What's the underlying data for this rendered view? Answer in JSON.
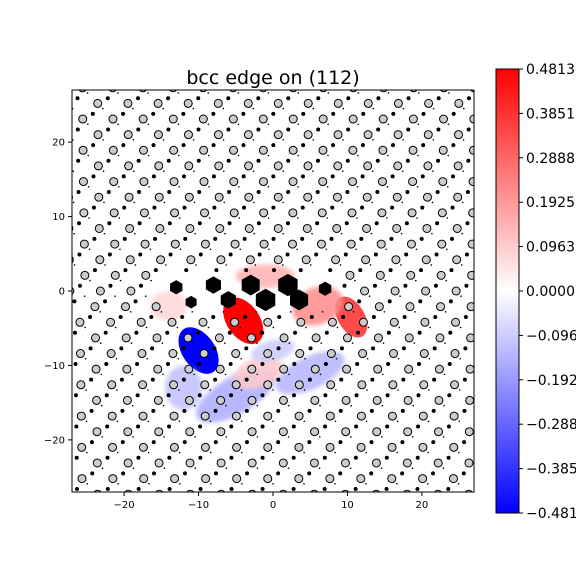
{
  "chart_data": {
    "type": "heatmap",
    "title": "bcc edge on (112)",
    "xlabel": "",
    "ylabel": "",
    "xlim": [
      -27,
      27
    ],
    "ylim": [
      -27,
      27
    ],
    "x_ticks": [
      -20,
      -10,
      0,
      10,
      20
    ],
    "y_ticks": [
      -20,
      -10,
      0,
      10,
      20
    ],
    "grid": false,
    "colormap": "bwr",
    "colorbar": {
      "vmin": -0.4813,
      "vmax": 0.4813,
      "tick_values": [
        0.4813,
        0.3851,
        0.2888,
        0.1925,
        0.0963,
        0.0,
        -0.0963,
        -0.1925,
        -0.2888,
        -0.3851,
        -0.4813
      ],
      "tick_labels": [
        "0.4813",
        "0.3851",
        "0.2888",
        "0.1925",
        "0.0963",
        "0.0000",
        "-0.096",
        "-0.192",
        "-0.288",
        "-0.385",
        "-0.481"
      ],
      "colors": {
        "max": "#ff0000",
        "mid": "#ffffff",
        "min": "#0000ff"
      }
    },
    "atom_lattice": {
      "a1": [
        4.1,
        0
      ],
      "a2": [
        2.05,
        2.1
      ],
      "layer_offset": [
        1.37,
        0.7
      ],
      "open_marker_color": "#cccccc",
      "filled_marker_color": "#000000"
    },
    "core_atoms": [
      {
        "x": -13,
        "y": 0.5,
        "size": 1.6
      },
      {
        "x": -11,
        "y": -1.5,
        "size": 1.4
      },
      {
        "x": -8,
        "y": 0.8,
        "size": 2.0
      },
      {
        "x": -6,
        "y": -1.2,
        "size": 2.0
      },
      {
        "x": -3,
        "y": 0.8,
        "size": 2.4
      },
      {
        "x": -1,
        "y": -1.2,
        "size": 2.6
      },
      {
        "x": 2,
        "y": 0.8,
        "size": 2.6
      },
      {
        "x": 3.5,
        "y": -1.2,
        "size": 2.4
      },
      {
        "x": 7,
        "y": 0.3,
        "size": 1.6
      }
    ],
    "shear_strain_patches": [
      {
        "x": -10,
        "y": -8,
        "sx": 2.2,
        "sy": 3.5,
        "angle": 35,
        "value": -0.4813
      },
      {
        "x": -4,
        "y": -4,
        "sx": 2.2,
        "sy": 3.5,
        "angle": 35,
        "value": 0.4813
      },
      {
        "x": 10.5,
        "y": -3.5,
        "sx": 1.8,
        "sy": 3.0,
        "angle": 30,
        "value": 0.34
      },
      {
        "x": 6,
        "y": -2,
        "sx": 3.5,
        "sy": 2.5,
        "angle": 20,
        "value": 0.22
      },
      {
        "x": -1,
        "y": 2,
        "sx": 4.0,
        "sy": 1.6,
        "angle": 0,
        "value": 0.15
      },
      {
        "x": -5,
        "y": -14,
        "sx": 6.0,
        "sy": 2.5,
        "angle": 30,
        "value": -0.16
      },
      {
        "x": 5,
        "y": -11,
        "sx": 5.0,
        "sy": 2.2,
        "angle": 25,
        "value": -0.14
      },
      {
        "x": -12,
        "y": -13,
        "sx": 2.5,
        "sy": 3.0,
        "angle": 0,
        "value": -0.12
      },
      {
        "x": -2,
        "y": -11,
        "sx": 3.5,
        "sy": 2.0,
        "angle": 20,
        "value": 0.1
      },
      {
        "x": 0,
        "y": -8,
        "sx": 3.0,
        "sy": 1.4,
        "angle": 15,
        "value": -0.1
      },
      {
        "x": -14,
        "y": -2,
        "sx": 2.5,
        "sy": 2.0,
        "angle": 0,
        "value": 0.08
      }
    ]
  }
}
